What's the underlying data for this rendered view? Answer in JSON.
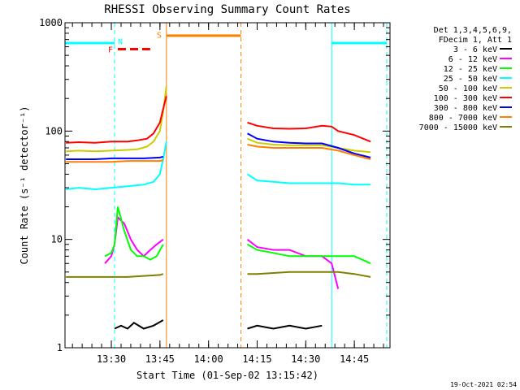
{
  "chart_data": {
    "type": "line",
    "title": "RHESSI Observing Summary Count Rates",
    "xlabel": "Start Time (01-Sep-02 13:15:42)",
    "ylabel": "Count Rate (s⁻¹ detector⁻¹)",
    "y_scale": "log",
    "ylim": [
      1,
      1000
    ],
    "xlim": [
      "13:15:42",
      "14:56:00"
    ],
    "x_ticks": [
      "13:30",
      "13:45",
      "14:00",
      "14:15",
      "14:30",
      "14:45"
    ],
    "y_ticks": [
      "1",
      "10",
      "100",
      "1000"
    ],
    "legend_header": [
      "Det 1,3,4,5,6,9,",
      "FDecim 1, Att 1"
    ],
    "legend_position": "right",
    "timestamp": "19-Oct-2021 02:54",
    "series": [
      {
        "name": "3 - 6 keV",
        "color": "#000000",
        "segments": [
          {
            "x": [
              "13:31",
              "13:33",
              "13:35",
              "13:37",
              "13:40",
              "13:43",
              "13:46"
            ],
            "y": [
              1.5,
              1.6,
              1.5,
              1.7,
              1.5,
              1.6,
              1.8
            ]
          },
          {
            "x": [
              "14:12",
              "14:15",
              "14:20",
              "14:25",
              "14:30",
              "14:35"
            ],
            "y": [
              1.5,
              1.6,
              1.5,
              1.6,
              1.5,
              1.6
            ]
          }
        ]
      },
      {
        "name": "6 - 12 keV",
        "color": "#ff00ff",
        "segments": [
          {
            "x": [
              "13:28",
              "13:30",
              "13:31",
              "13:32",
              "13:34",
              "13:36",
              "13:38",
              "13:40",
              "13:42",
              "13:44",
              "13:46"
            ],
            "y": [
              6,
              7,
              9,
              16,
              14,
              10,
              8,
              7,
              8,
              9,
              10
            ]
          },
          {
            "x": [
              "14:12",
              "14:15",
              "14:20",
              "14:25",
              "14:30",
              "14:35",
              "14:38",
              "14:40"
            ],
            "y": [
              10,
              8.5,
              8,
              8,
              7,
              7,
              6,
              3.5
            ]
          }
        ]
      },
      {
        "name": "12 - 25 keV",
        "color": "#00ff00",
        "segments": [
          {
            "x": [
              "13:28",
              "13:30",
              "13:31",
              "13:32",
              "13:34",
              "13:36",
              "13:38",
              "13:40",
              "13:42",
              "13:44",
              "13:46"
            ],
            "y": [
              7,
              7.5,
              9,
              20,
              12,
              8,
              7,
              7,
              6.5,
              7,
              9
            ]
          },
          {
            "x": [
              "14:12",
              "14:15",
              "14:20",
              "14:25",
              "14:30",
              "14:35",
              "14:40",
              "14:45",
              "14:50"
            ],
            "y": [
              9,
              8,
              7.5,
              7,
              7,
              7,
              7,
              7,
              6
            ]
          }
        ]
      },
      {
        "name": "25 - 50 keV",
        "color": "#00ffff",
        "segments": [
          {
            "x": [
              "13:16",
              "13:20",
              "13:25",
              "13:30",
              "13:35",
              "13:40",
              "13:43",
              "13:45",
              "13:46",
              "13:47"
            ],
            "y": [
              29,
              30,
              29,
              30,
              31,
              32,
              34,
              40,
              55,
              80
            ]
          },
          {
            "x": [
              "14:12",
              "14:15",
              "14:20",
              "14:25",
              "14:30",
              "14:35",
              "14:40",
              "14:45",
              "14:50"
            ],
            "y": [
              40,
              35,
              34,
              33,
              33,
              33,
              33,
              32,
              32
            ]
          }
        ]
      },
      {
        "name": "50 - 100 keV",
        "color": "#cccc00",
        "segments": [
          {
            "x": [
              "13:16",
              "13:20",
              "13:25",
              "13:30",
              "13:35",
              "13:38",
              "13:41",
              "13:43",
              "13:45",
              "13:46",
              "13:47"
            ],
            "y": [
              65,
              66,
              65,
              66,
              67,
              68,
              72,
              80,
              100,
              150,
              260
            ]
          },
          {
            "x": [
              "14:12",
              "14:15",
              "14:20",
              "14:25",
              "14:30",
              "14:35",
              "14:40",
              "14:45",
              "14:50"
            ],
            "y": [
              85,
              78,
              75,
              74,
              74,
              74,
              70,
              66,
              64
            ]
          }
        ]
      },
      {
        "name": "100 - 300 keV",
        "color": "#ff0000",
        "segments": [
          {
            "x": [
              "13:16",
              "13:20",
              "13:25",
              "13:30",
              "13:35",
              "13:38",
              "13:41",
              "13:43",
              "13:45",
              "13:46",
              "13:47"
            ],
            "y": [
              78,
              79,
              78,
              80,
              80,
              82,
              85,
              95,
              120,
              160,
              210
            ]
          },
          {
            "x": [
              "14:12",
              "14:15",
              "14:20",
              "14:25",
              "14:30",
              "14:35",
              "14:38",
              "14:40",
              "14:45",
              "14:50"
            ],
            "y": [
              120,
              112,
              106,
              105,
              106,
              112,
              110,
              100,
              92,
              80
            ]
          }
        ]
      },
      {
        "name": "300 - 800 keV",
        "color": "#0000ff",
        "segments": [
          {
            "x": [
              "13:16",
              "13:20",
              "13:25",
              "13:30",
              "13:35",
              "13:40",
              "13:45",
              "13:46"
            ],
            "y": [
              55,
              55,
              55,
              56,
              56,
              56,
              57,
              58
            ]
          },
          {
            "x": [
              "14:12",
              "14:15",
              "14:20",
              "14:25",
              "14:30",
              "14:35",
              "14:40",
              "14:45",
              "14:50"
            ],
            "y": [
              95,
              85,
              80,
              78,
              77,
              77,
              70,
              62,
              57
            ]
          }
        ]
      },
      {
        "name": "800 - 7000 keV",
        "color": "#ff8000",
        "segments": [
          {
            "x": [
              "13:16",
              "13:20",
              "13:25",
              "13:30",
              "13:35",
              "13:40",
              "13:45",
              "13:46"
            ],
            "y": [
              52,
              52,
              52,
              52,
              53,
              53,
              53,
              54
            ]
          },
          {
            "x": [
              "14:12",
              "14:15",
              "14:20",
              "14:25",
              "14:30",
              "14:35",
              "14:40",
              "14:45",
              "14:50"
            ],
            "y": [
              75,
              72,
              70,
              70,
              70,
              70,
              66,
              60,
              55
            ]
          }
        ]
      },
      {
        "name": "7000 - 15000 keV",
        "color": "#808000",
        "segments": [
          {
            "x": [
              "13:16",
              "13:20",
              "13:25",
              "13:30",
              "13:35",
              "13:40",
              "13:45",
              "13:46"
            ],
            "y": [
              4.5,
              4.5,
              4.5,
              4.5,
              4.5,
              4.6,
              4.7,
              4.8
            ]
          },
          {
            "x": [
              "14:12",
              "14:15",
              "14:20",
              "14:25",
              "14:30",
              "14:35",
              "14:40",
              "14:45",
              "14:50"
            ],
            "y": [
              4.8,
              4.8,
              4.9,
              5,
              5,
              5,
              5,
              4.8,
              4.5
            ]
          }
        ]
      }
    ],
    "vlines": [
      {
        "x": "13:15:42",
        "color": "#00ffff",
        "style": "solid"
      },
      {
        "x": "13:31",
        "color": "#00ffff",
        "style": "dashed"
      },
      {
        "x": "13:47",
        "color": "#ff8000",
        "style": "solid"
      },
      {
        "x": "14:10",
        "color": "#ff8000",
        "style": "dashed"
      },
      {
        "x": "14:38",
        "color": "#00ffff",
        "style": "solid"
      },
      {
        "x": "14:55",
        "color": "#00ffff",
        "style": "dashed"
      }
    ],
    "flag_bars": [
      {
        "label": "",
        "color": "#00ffff",
        "x_start": "13:15:42",
        "x_end": "13:31",
        "y": 650,
        "style": "solid"
      },
      {
        "label": "",
        "color": "#00ffff",
        "x_start": "14:38",
        "x_end": "14:55",
        "y": 650,
        "style": "solid"
      },
      {
        "label": "S",
        "color": "#ff8000",
        "x_start": "13:47",
        "x_end": "14:10",
        "y": 760,
        "style": "solid"
      },
      {
        "label": "F",
        "color": "#ff0000",
        "x_start": "13:32",
        "x_end": "13:42",
        "y": 570,
        "style": "dashed"
      }
    ],
    "flag_labels": [
      {
        "label": "N",
        "color": "#00ffff",
        "x": "13:32",
        "y": 680
      },
      {
        "label": "S",
        "color": "#ff8000",
        "x": "13:44",
        "y": 780
      },
      {
        "label": "F",
        "color": "#ff0000",
        "x": "13:29",
        "y": 570
      }
    ]
  }
}
